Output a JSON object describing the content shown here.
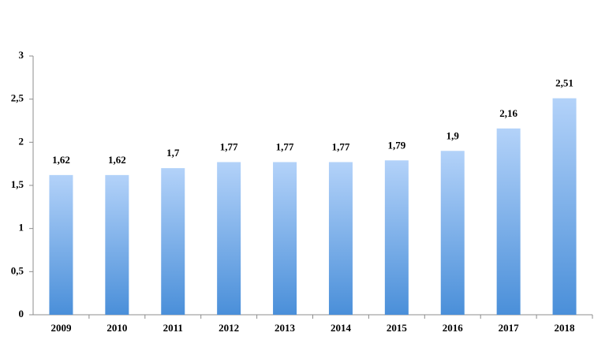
{
  "chart_data": {
    "type": "bar",
    "categories": [
      "2009",
      "2010",
      "2011",
      "2012",
      "2013",
      "2014",
      "2015",
      "2016",
      "2017",
      "2018"
    ],
    "values": [
      1.62,
      1.62,
      1.7,
      1.77,
      1.77,
      1.77,
      1.79,
      1.9,
      2.16,
      2.51
    ],
    "value_labels": [
      "1,62",
      "1,62",
      "1,7",
      "1,77",
      "1,77",
      "1,77",
      "1,79",
      "1,9",
      "2,16",
      "2,51"
    ],
    "color": {
      "top": "#b3d2f9",
      "bottom": "#4a8fd9"
    },
    "ylim": [
      0,
      3
    ],
    "yticks": [
      0,
      {
        "value": 0.5,
        "label": "0,5"
      },
      1,
      {
        "value": 1.5,
        "label": "1,5"
      },
      2,
      {
        "value": 2.5,
        "label": "2,5"
      },
      3
    ],
    "grid": false
  }
}
